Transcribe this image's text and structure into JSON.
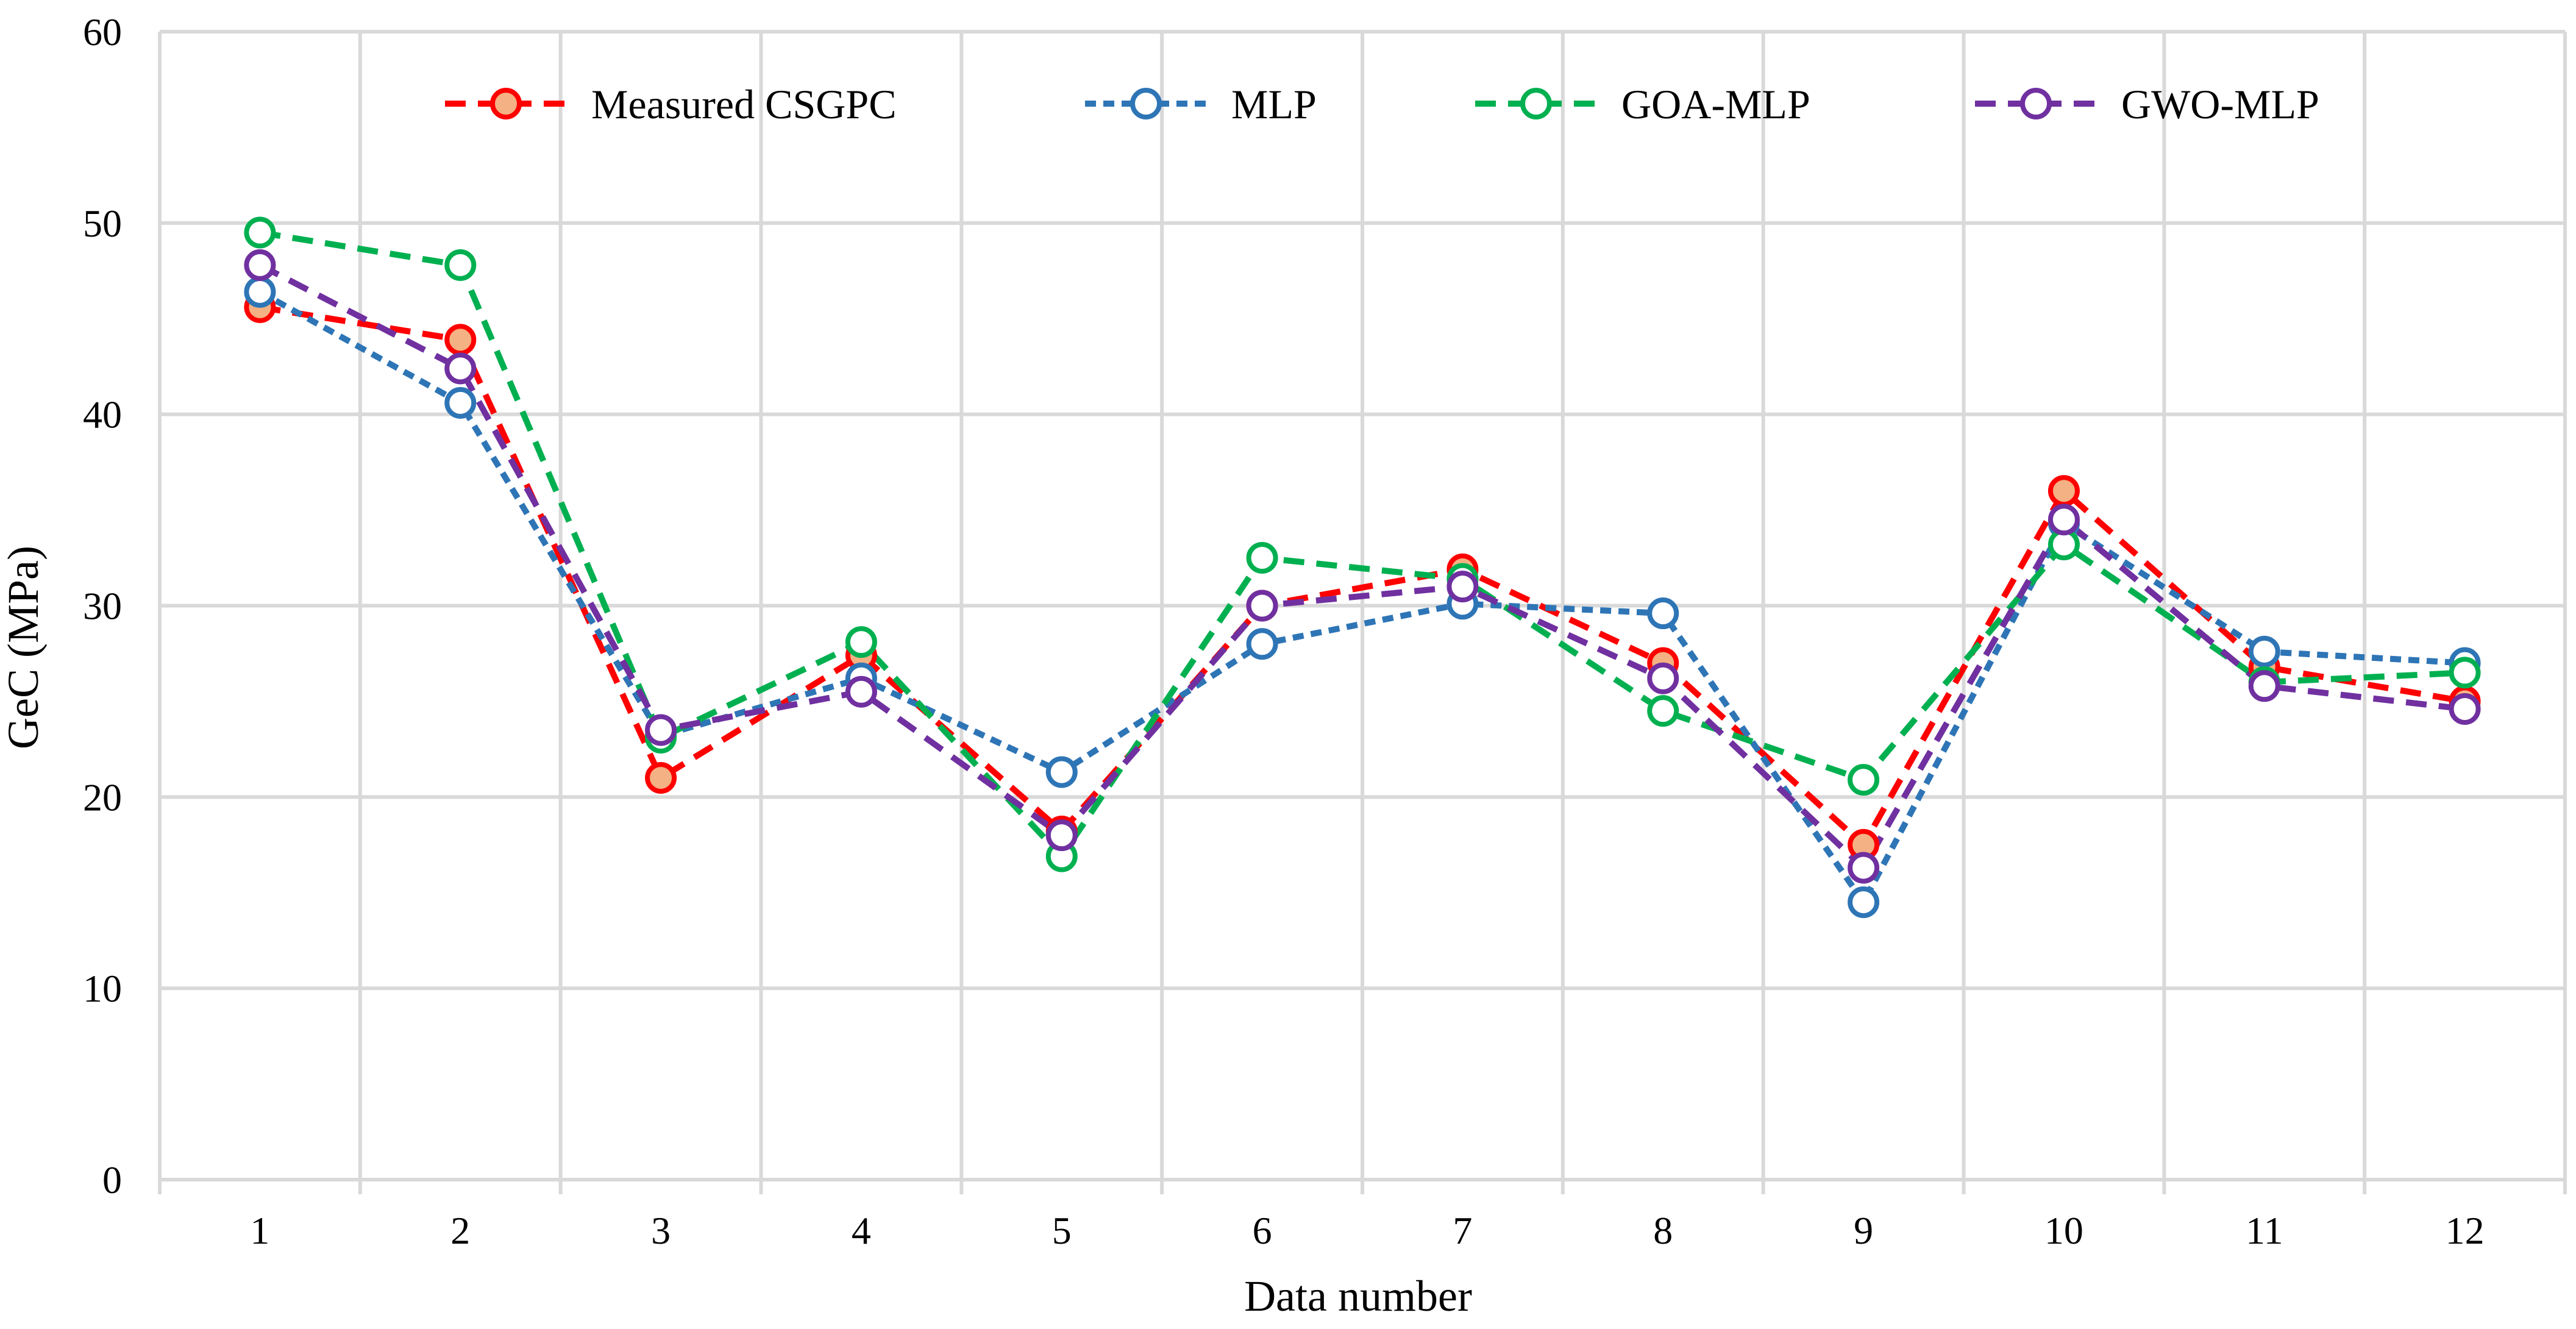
{
  "chart_data": {
    "type": "line",
    "title": "",
    "xlabel": "Data number",
    "ylabel": "GeC (MPa)",
    "categories": [
      "1",
      "2",
      "3",
      "4",
      "5",
      "6",
      "7",
      "8",
      "9",
      "10",
      "11",
      "12"
    ],
    "ylim": [
      0,
      60
    ],
    "yticks": [
      "0",
      "10",
      "20",
      "30",
      "40",
      "50",
      "60"
    ],
    "ytick_values": [
      0,
      10,
      20,
      30,
      40,
      50,
      60
    ],
    "grid": true,
    "legend_position": "top",
    "series": [
      {
        "name": "Measured CSGPC",
        "color": "#ff0000",
        "marker_fill": "#f4b183",
        "marker_stroke": "#ff0000",
        "dash": "long-dash",
        "values": [
          45.6,
          43.9,
          21.0,
          27.4,
          18.2,
          30.0,
          31.9,
          27.0,
          17.5,
          36.0,
          26.8,
          25.0
        ]
      },
      {
        "name": "MLP",
        "color": "#2e75b6",
        "marker_fill": "#ffffff",
        "marker_stroke": "#2e75b6",
        "dash": "short-dash",
        "values": [
          46.4,
          40.6,
          23.2,
          26.2,
          21.3,
          28.0,
          30.1,
          29.6,
          14.5,
          34.3,
          27.6,
          27.0
        ]
      },
      {
        "name": "GOA-MLP",
        "color": "#00b050",
        "marker_fill": "#ffffff",
        "marker_stroke": "#00b050",
        "dash": "long-dash",
        "values": [
          49.5,
          47.8,
          23.1,
          28.1,
          16.9,
          32.5,
          31.4,
          24.5,
          20.9,
          33.2,
          26.0,
          26.5
        ]
      },
      {
        "name": "GWO-MLP",
        "color": "#7030a0",
        "marker_fill": "#ffffff",
        "marker_stroke": "#7030a0",
        "dash": "long-dash",
        "values": [
          47.8,
          42.4,
          23.5,
          25.5,
          18.0,
          30.0,
          31.0,
          26.2,
          16.3,
          34.5,
          25.8,
          24.6
        ]
      }
    ]
  }
}
